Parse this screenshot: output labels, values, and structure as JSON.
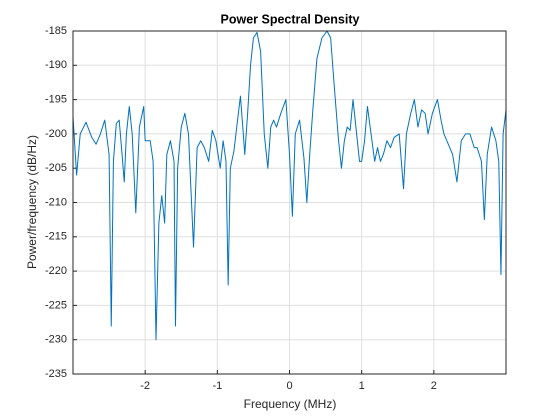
{
  "chart_data": {
    "type": "line",
    "title": "Power Spectral Density",
    "xlabel": "Frequency (MHz)",
    "ylabel": "Power/frequency (dB/Hz)",
    "color": "#0072bd",
    "grid": true,
    "xlim": [
      -3,
      3
    ],
    "ylim": [
      -235,
      -185
    ],
    "xticks": [
      -2,
      -1,
      0,
      1,
      2
    ],
    "yticks": [
      -185,
      -190,
      -195,
      -200,
      -205,
      -210,
      -215,
      -220,
      -225,
      -230,
      -235
    ],
    "x": [
      -3.0,
      -2.95,
      -2.9,
      -2.82,
      -2.74,
      -2.68,
      -2.62,
      -2.56,
      -2.5,
      -2.47,
      -2.44,
      -2.4,
      -2.36,
      -2.32,
      -2.29,
      -2.26,
      -2.22,
      -2.18,
      -2.13,
      -2.08,
      -2.02,
      -2.0,
      -1.93,
      -1.89,
      -1.85,
      -1.81,
      -1.77,
      -1.73,
      -1.7,
      -1.65,
      -1.6,
      -1.58,
      -1.55,
      -1.5,
      -1.45,
      -1.4,
      -1.33,
      -1.28,
      -1.23,
      -1.18,
      -1.12,
      -1.07,
      -1.02,
      -0.96,
      -0.92,
      -0.88,
      -0.85,
      -0.82,
      -0.77,
      -0.72,
      -0.68,
      -0.64,
      -0.62,
      -0.58,
      -0.54,
      -0.5,
      -0.45,
      -0.4,
      -0.35,
      -0.3,
      -0.26,
      -0.22,
      -0.18,
      -0.12,
      -0.05,
      0.0,
      0.04,
      0.08,
      0.14,
      0.2,
      0.24,
      0.28,
      0.32,
      0.38,
      0.45,
      0.52,
      0.57,
      0.62,
      0.68,
      0.72,
      0.76,
      0.8,
      0.84,
      0.88,
      0.93,
      0.97,
      1.0,
      1.04,
      1.08,
      1.13,
      1.18,
      1.22,
      1.26,
      1.3,
      1.35,
      1.4,
      1.45,
      1.52,
      1.58,
      1.62,
      1.68,
      1.73,
      1.78,
      1.83,
      1.88,
      1.92,
      1.98,
      2.05,
      2.1,
      2.14,
      2.2,
      2.26,
      2.32,
      2.38,
      2.44,
      2.5,
      2.56,
      2.6,
      2.66,
      2.7,
      2.74,
      2.8,
      2.86,
      2.9,
      2.93,
      2.96,
      3.0
    ],
    "values": [
      -197.5,
      -206,
      -200,
      -198.3,
      -200.5,
      -201.5,
      -200,
      -198,
      -203,
      -228,
      -204,
      -198.5,
      -198,
      -203,
      -207,
      -200,
      -196,
      -200,
      -211.5,
      -199,
      -196,
      -201,
      -201,
      -204,
      -230,
      -213,
      -209,
      -213,
      -203,
      -201,
      -204,
      -228,
      -205,
      -199,
      -197,
      -200,
      -216.5,
      -202,
      -201,
      -202,
      -204,
      -199.5,
      -201,
      -205,
      -201,
      -204,
      -222,
      -205,
      -202.5,
      -198,
      -194.5,
      -200,
      -203,
      -197,
      -190,
      -186,
      -185.2,
      -188,
      -200,
      -205,
      -199,
      -198,
      -199,
      -197,
      -195,
      -203,
      -212,
      -200,
      -198,
      -203.5,
      -210,
      -203,
      -197,
      -189,
      -186,
      -185,
      -186,
      -193,
      -201,
      -205,
      -201,
      -199,
      -199.5,
      -195,
      -200,
      -204,
      -204,
      -201,
      -196,
      -200,
      -204,
      -202,
      -204,
      -203,
      -201,
      -202,
      -200.5,
      -200,
      -208,
      -200,
      -197,
      -195,
      -199,
      -196.5,
      -197,
      -200,
      -197,
      -195,
      -198,
      -200,
      -201.5,
      -203,
      -207,
      -201,
      -200,
      -200,
      -202,
      -202,
      -204,
      -212.5,
      -203,
      -199,
      -201,
      -204,
      -220.5,
      -200,
      -196.5
    ]
  }
}
